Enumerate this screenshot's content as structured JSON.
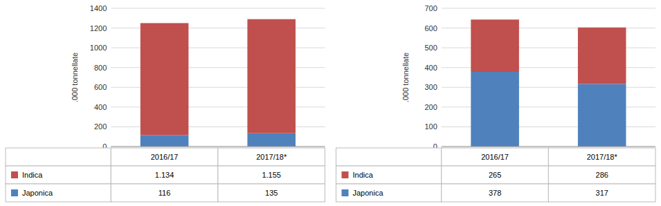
{
  "chart_data": [
    {
      "type": "bar",
      "stacked": true,
      "grid": true,
      "y_label": ".000 tonnellate",
      "categories": [
        "2016/17",
        "2017/18*"
      ],
      "series": [
        {
          "name": "Japonica",
          "color": "#4F81BD",
          "values": [
            116,
            135
          ],
          "value_labels": [
            "116",
            "135"
          ]
        },
        {
          "name": "Indica",
          "color": "#C0504D",
          "values": [
            1134,
            1155
          ],
          "value_labels": [
            "1.134",
            "1.155"
          ]
        }
      ],
      "ylim": [
        0,
        1400
      ],
      "yticks": [
        0,
        200,
        400,
        600,
        800,
        1000,
        1200,
        1400
      ]
    },
    {
      "type": "bar",
      "stacked": true,
      "grid": true,
      "y_label": ".000 tonnellate",
      "categories": [
        "2016/17",
        "2017/18*"
      ],
      "series": [
        {
          "name": "Japonica",
          "color": "#4F81BD",
          "values": [
            378,
            317
          ],
          "value_labels": [
            "378",
            "317"
          ]
        },
        {
          "name": "Indica",
          "color": "#C0504D",
          "values": [
            265,
            286
          ],
          "value_labels": [
            "265",
            "286"
          ]
        }
      ],
      "ylim": [
        0,
        700
      ],
      "yticks": [
        0,
        100,
        200,
        300,
        400,
        500,
        600,
        700
      ]
    }
  ]
}
